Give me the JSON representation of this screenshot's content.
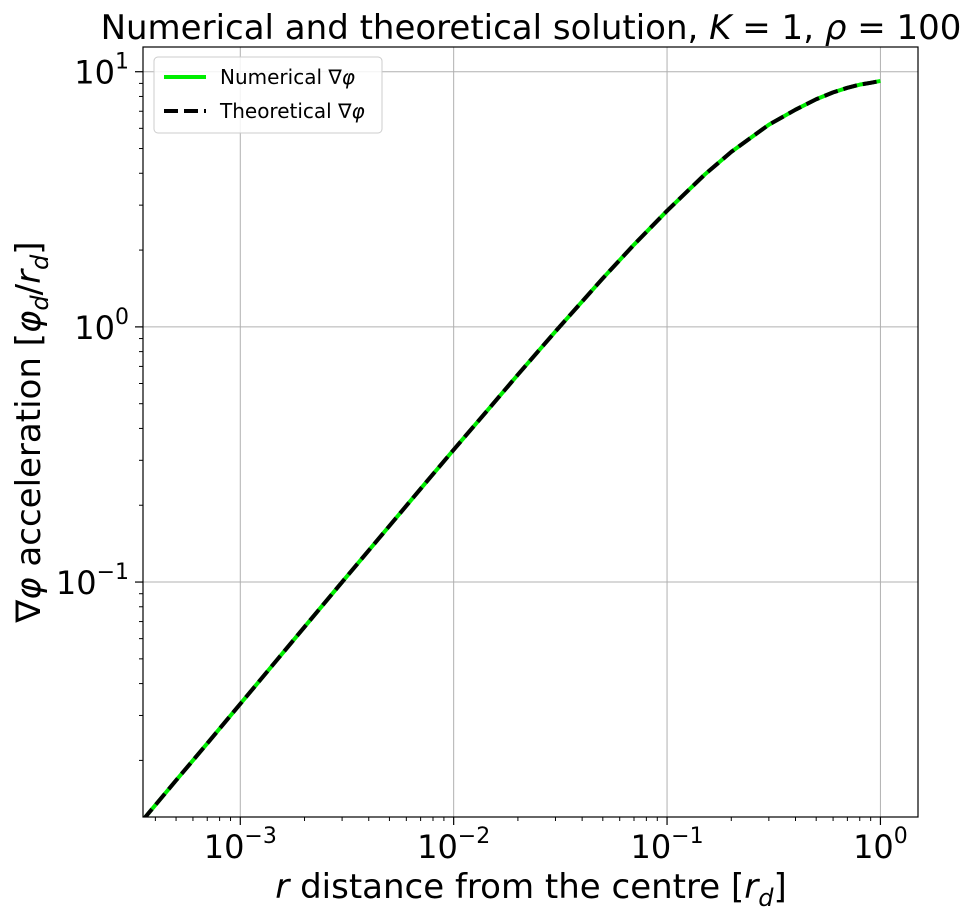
{
  "chart_data": {
    "type": "line",
    "title": "Numerical and theoretical solution, K = 1, ρ = 100",
    "title_parts": {
      "prefix": "Numerical and theoretical solution, ",
      "k_symbol": "K",
      "k_value": " = 1, ",
      "rho_symbol": "ρ",
      "rho_value": " = 100"
    },
    "xlabel": "r distance from the centre [r_d]",
    "xlabel_parts": {
      "var": "r",
      "text": " distance from the centre [",
      "unit": "r",
      "unit_sub": "d",
      "close": "]"
    },
    "ylabel": "∇φ acceleration [φ_d/r_d]",
    "ylabel_parts": {
      "pre": "∇",
      "phi": "φ",
      "text": " acceleration [",
      "u1": "φ",
      "u1_sub": "d",
      "slash": "/",
      "u2": "r",
      "u2_sub": "d",
      "close": "]"
    },
    "xscale": "log",
    "yscale": "log",
    "xlim": [
      0.00035,
      1.5
    ],
    "ylim": [
      0.012,
      12.5
    ],
    "xticks": [
      {
        "value": 0.001,
        "base": "10",
        "exp": "−3"
      },
      {
        "value": 0.01,
        "base": "10",
        "exp": "−2"
      },
      {
        "value": 0.1,
        "base": "10",
        "exp": "−1"
      },
      {
        "value": 1,
        "base": "10",
        "exp": "0"
      }
    ],
    "yticks": [
      {
        "value": 0.1,
        "base": "10",
        "exp": "−1"
      },
      {
        "value": 1,
        "base": "10",
        "exp": "0"
      },
      {
        "value": 10,
        "base": "10",
        "exp": "1"
      }
    ],
    "grid": true,
    "legend_position": "top-left",
    "series": [
      {
        "name": "Numerical ∇φ",
        "color": "#00ee00",
        "style": "solid",
        "x": [
          0.00035,
          0.0005,
          0.0007,
          0.001,
          0.0015,
          0.002,
          0.003,
          0.005,
          0.007,
          0.01,
          0.015,
          0.02,
          0.03,
          0.05,
          0.07,
          0.1,
          0.15,
          0.2,
          0.3,
          0.4,
          0.5,
          0.6,
          0.7,
          0.8,
          0.9,
          1.0
        ],
        "y": [
          0.0117,
          0.0167,
          0.0233,
          0.0333,
          0.05,
          0.0667,
          0.1,
          0.166,
          0.232,
          0.33,
          0.49,
          0.65,
          0.96,
          1.55,
          2.1,
          2.85,
          3.95,
          4.85,
          6.2,
          7.1,
          7.8,
          8.3,
          8.65,
          8.9,
          9.05,
          9.2
        ]
      },
      {
        "name": "Theoretical ∇φ",
        "color": "#000000",
        "style": "dashed",
        "x": [
          0.00035,
          0.0005,
          0.0007,
          0.001,
          0.0015,
          0.002,
          0.003,
          0.005,
          0.007,
          0.01,
          0.015,
          0.02,
          0.03,
          0.05,
          0.07,
          0.1,
          0.15,
          0.2,
          0.3,
          0.4,
          0.5,
          0.6,
          0.7,
          0.8,
          0.9,
          1.0
        ],
        "y": [
          0.0117,
          0.0167,
          0.0233,
          0.0333,
          0.05,
          0.0667,
          0.1,
          0.166,
          0.232,
          0.33,
          0.49,
          0.65,
          0.96,
          1.55,
          2.1,
          2.85,
          3.95,
          4.85,
          6.2,
          7.1,
          7.8,
          8.3,
          8.65,
          8.9,
          9.05,
          9.2
        ]
      }
    ],
    "legend": {
      "entries": [
        {
          "label_text": "Numerical ∇",
          "label_phi": "φ"
        },
        {
          "label_text": "Theoretical ∇",
          "label_phi": "φ"
        }
      ]
    }
  }
}
